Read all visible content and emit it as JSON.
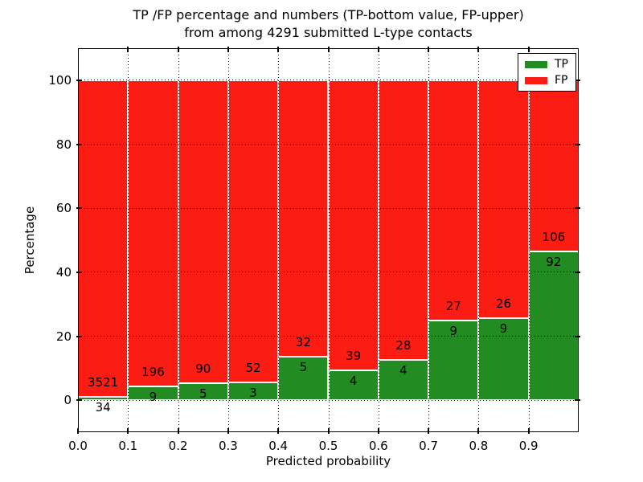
{
  "figure": {
    "title_line1": "TP /FP percentage and numbers (TP-bottom value, FP-upper)",
    "title_line2": "from among 4291 submitted L-type contacts"
  },
  "axes": {
    "xlabel": "Predicted probability",
    "ylabel": "Percentage",
    "x_tick_labels": [
      "0.0",
      "0.1",
      "0.2",
      "0.3",
      "0.4",
      "0.5",
      "0.6",
      "0.7",
      "0.8",
      "0.9"
    ],
    "x_tick_positions": [
      0,
      0.1,
      0.2,
      0.3,
      0.4,
      0.5,
      0.6,
      0.7,
      0.8,
      0.9
    ],
    "y_tick_labels": [
      "0",
      "20",
      "40",
      "60",
      "80",
      "100"
    ],
    "y_tick_values": [
      0,
      20,
      40,
      60,
      80,
      100
    ],
    "ylim": [
      -10,
      110
    ],
    "xlim": [
      0,
      1
    ],
    "grid_style": "dotted"
  },
  "legend": {
    "position": "upper-right",
    "items": [
      {
        "label": "TP",
        "color": "#228b22"
      },
      {
        "label": "FP",
        "color": "#fb1c13"
      }
    ]
  },
  "chart_data": {
    "type": "bar",
    "variant": "stacked-percentage-histogram",
    "title": "TP /FP percentage and numbers (TP-bottom value, FP-upper) from among 4291 submitted L-type contacts",
    "xlabel": "Predicted probability",
    "ylabel": "Percentage",
    "bin_edges": [
      0.0,
      0.1,
      0.2,
      0.3,
      0.4,
      0.5,
      0.6,
      0.7,
      0.8,
      0.9,
      1.0
    ],
    "series": [
      {
        "name": "TP",
        "color": "#228b22",
        "counts": [
          34,
          9,
          5,
          3,
          5,
          4,
          4,
          9,
          9,
          92
        ]
      },
      {
        "name": "FP",
        "color": "#fb1c13",
        "counts": [
          3521,
          196,
          90,
          52,
          32,
          39,
          28,
          27,
          26,
          106
        ]
      }
    ],
    "total_contacts": 4291,
    "bar_total_percent": 100,
    "ylim": [
      -10,
      110
    ],
    "legend_position": "upper-right",
    "grid": true
  }
}
